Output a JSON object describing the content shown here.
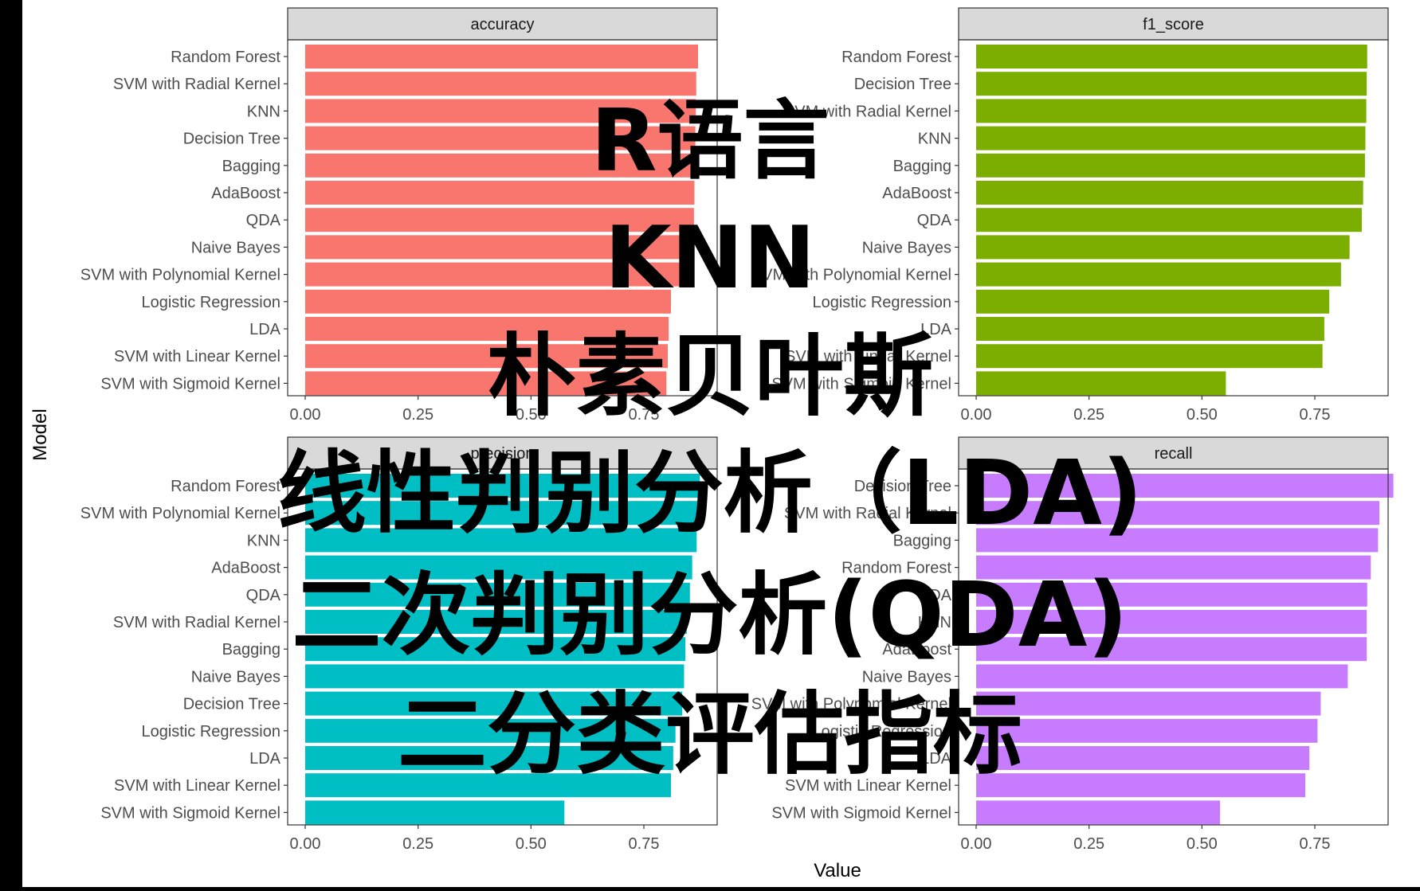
{
  "overlay_lines": [
    "R语言",
    "KNN",
    "朴素贝叶斯",
    "线性判别分析（LDA)",
    "二次判别分析(QDA)",
    "二分类评估指标"
  ],
  "axis": {
    "xlabel": "Value",
    "ylabel": "Model"
  },
  "colors": {
    "accuracy": "#F8766D",
    "f1_score": "#7CAE00",
    "precision": "#00BFC4",
    "recall": "#C77CFF",
    "strip": "#D9D9D9",
    "overlay_text": "#000000"
  },
  "chart_data": [
    {
      "type": "bar",
      "orientation": "horizontal",
      "panel": "accuracy",
      "xlim": [
        0,
        0.9
      ],
      "x_ticks": [
        "0.00",
        "0.25",
        "0.50",
        "0.75"
      ],
      "grid": false,
      "categories": [
        "Random Forest",
        "SVM with Radial Kernel",
        "KNN",
        "Decision Tree",
        "Bagging",
        "AdaBoost",
        "QDA",
        "Naive Bayes",
        "SVM with Polynomial Kernel",
        "Logistic Regression",
        "LDA",
        "SVM with Linear Kernel",
        "SVM with Sigmoid Kernel"
      ],
      "values": [
        0.87,
        0.866,
        0.865,
        0.864,
        0.863,
        0.862,
        0.861,
        0.855,
        0.85,
        0.81,
        0.805,
        0.803,
        0.8
      ]
    },
    {
      "type": "bar",
      "orientation": "horizontal",
      "panel": "f1_score",
      "xlim": [
        0,
        0.9
      ],
      "x_ticks": [
        "0.00",
        "0.25",
        "0.50",
        "0.75"
      ],
      "grid": false,
      "categories": [
        "Random Forest",
        "Decision Tree",
        "SVM with Radial Kernel",
        "KNN",
        "Bagging",
        "AdaBoost",
        "QDA",
        "Naive Bayes",
        "SVM with Polynomial Kernel",
        "Logistic Regression",
        "LDA",
        "SVM with Linear Kernel",
        "SVM with Sigmoid Kernel"
      ],
      "values": [
        0.866,
        0.865,
        0.864,
        0.862,
        0.861,
        0.857,
        0.854,
        0.827,
        0.808,
        0.782,
        0.771,
        0.767,
        0.553
      ]
    },
    {
      "type": "bar",
      "orientation": "horizontal",
      "panel": "precision",
      "xlim": [
        0,
        0.9
      ],
      "x_ticks": [
        "0.00",
        "0.25",
        "0.50",
        "0.75"
      ],
      "grid": false,
      "categories": [
        "Random Forest",
        "SVM with Polynomial Kernel",
        "KNN",
        "AdaBoost",
        "QDA",
        "SVM with Radial Kernel",
        "Bagging",
        "Naive Bayes",
        "Decision Tree",
        "Logistic Regression",
        "LDA",
        "SVM with Linear Kernel",
        "SVM with Sigmoid Kernel"
      ],
      "values": [
        0.874,
        0.87,
        0.867,
        0.857,
        0.852,
        0.845,
        0.842,
        0.839,
        0.835,
        0.82,
        0.815,
        0.81,
        0.574
      ]
    },
    {
      "type": "bar",
      "orientation": "horizontal",
      "panel": "recall",
      "xlim": [
        0,
        0.9
      ],
      "x_ticks": [
        "0.00",
        "0.25",
        "0.50",
        "0.75"
      ],
      "grid": false,
      "categories": [
        "Decision Tree",
        "SVM with Radial Kernel",
        "Bagging",
        "Random Forest",
        "QDA",
        "KNN",
        "AdaBoost",
        "Naive Bayes",
        "SVM with Polynomial Kernel",
        "Logistic Regression",
        "LDA",
        "SVM with Linear Kernel",
        "SVM with Sigmoid Kernel"
      ],
      "values": [
        0.924,
        0.893,
        0.89,
        0.874,
        0.866,
        0.865,
        0.865,
        0.823,
        0.763,
        0.756,
        0.738,
        0.729,
        0.54
      ]
    }
  ]
}
